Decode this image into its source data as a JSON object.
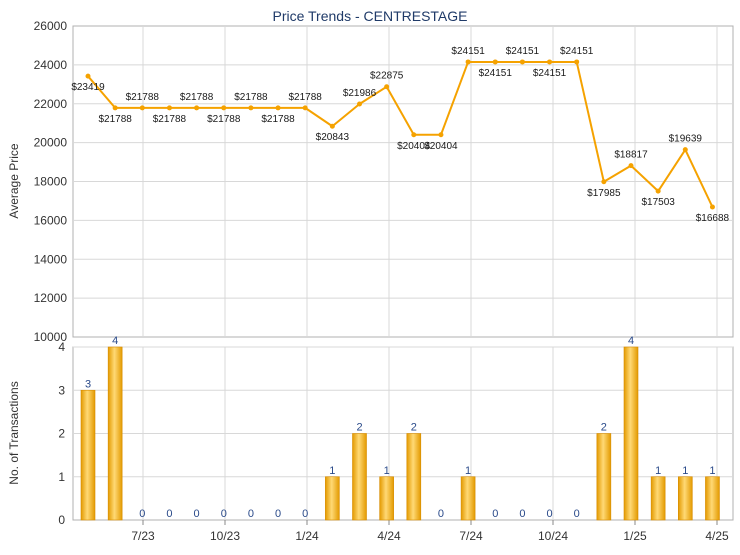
{
  "chart_data": [
    {
      "type": "line",
      "title": "Price Trends - CENTRESTAGE",
      "ylabel": "Average Price",
      "ylim": [
        10000,
        26000
      ],
      "y_ticks": [
        10000,
        12000,
        14000,
        16000,
        18000,
        20000,
        22000,
        24000,
        26000
      ],
      "grid": true,
      "series": [
        {
          "color": "#f5a200",
          "values": [
            23419,
            21788,
            21788,
            21788,
            21788,
            21788,
            21788,
            21788,
            21788,
            20843,
            21986,
            22875,
            20404,
            20404,
            24151,
            24151,
            24151,
            24151,
            24151,
            17985,
            18817,
            17503,
            19639,
            16688
          ],
          "labels": [
            "$23419",
            "$21788",
            "$21788",
            "$21788",
            "$21788",
            "$21788",
            "$21788",
            "$21788",
            "$21788",
            "$20843",
            "$21986",
            "$22875",
            "$20404",
            "$20404",
            "$24151",
            "$24151",
            "$24151",
            "$24151",
            "$24151",
            "$17985",
            "$18817",
            "$17503",
            "$19639",
            "$16688"
          ]
        }
      ]
    },
    {
      "type": "bar",
      "ylabel": "No. of Transactions",
      "ylim": [
        0,
        4
      ],
      "y_ticks": [
        0,
        1,
        2,
        3,
        4
      ],
      "grid": true,
      "x_tick_labels": [
        "7/23",
        "10/23",
        "1/24",
        "4/24",
        "7/24",
        "10/24",
        "1/25",
        "4/25"
      ],
      "values": [
        3,
        4,
        0,
        0,
        0,
        0,
        0,
        0,
        0,
        1,
        2,
        1,
        2,
        0,
        1,
        0,
        0,
        0,
        0,
        2,
        4,
        1,
        1,
        1
      ],
      "colors": {
        "bar": "#f5ae1f",
        "bar_light": "#fcd77a",
        "zero_label": "#2a4a8a"
      }
    }
  ]
}
